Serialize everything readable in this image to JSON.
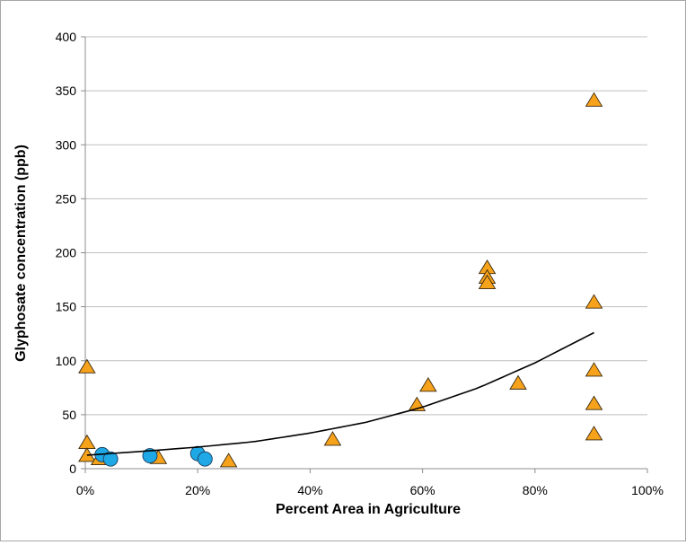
{
  "chart_data": {
    "type": "scatter",
    "title": "",
    "xlabel": "Percent Area in Agriculture",
    "ylabel": "Glyphosate concentration (ppb)",
    "xlim": [
      0,
      1
    ],
    "ylim": [
      0,
      400
    ],
    "x_ticks": [
      0,
      0.2,
      0.4,
      0.6,
      0.8,
      1.0
    ],
    "x_tick_labels": [
      "0%",
      "20%",
      "40%",
      "60%",
      "80%",
      "100%"
    ],
    "y_ticks": [
      0,
      50,
      100,
      150,
      200,
      250,
      300,
      350,
      400
    ],
    "y_tick_labels": [
      "0",
      "50",
      "100",
      "150",
      "200",
      "250",
      "300",
      "350",
      "400"
    ],
    "grid": "horizontal",
    "legend": "none",
    "series": [
      {
        "marker": "triangle",
        "color": "#f7a21b",
        "points": [
          [
            0.003,
            94
          ],
          [
            0.003,
            24
          ],
          [
            0.003,
            12
          ],
          [
            0.025,
            9
          ],
          [
            0.13,
            10
          ],
          [
            0.255,
            7
          ],
          [
            0.44,
            27
          ],
          [
            0.59,
            59
          ],
          [
            0.61,
            77
          ],
          [
            0.715,
            186
          ],
          [
            0.715,
            177
          ],
          [
            0.715,
            172
          ],
          [
            0.77,
            79
          ],
          [
            0.905,
            341
          ],
          [
            0.905,
            154
          ],
          [
            0.905,
            91
          ],
          [
            0.905,
            60
          ],
          [
            0.905,
            32
          ]
        ]
      },
      {
        "marker": "circle",
        "color": "#1ea8e6",
        "points": [
          [
            0.03,
            13
          ],
          [
            0.045,
            9
          ],
          [
            0.115,
            12
          ],
          [
            0.2,
            14
          ],
          [
            0.213,
            9
          ]
        ]
      }
    ],
    "trendline": {
      "type": "exponential",
      "color": "#000000",
      "x_range": [
        0.003,
        0.905
      ],
      "points": [
        [
          0.003,
          12.5
        ],
        [
          0.1,
          16
        ],
        [
          0.2,
          20
        ],
        [
          0.3,
          25
        ],
        [
          0.4,
          33
        ],
        [
          0.5,
          43
        ],
        [
          0.6,
          57
        ],
        [
          0.7,
          75
        ],
        [
          0.8,
          98
        ],
        [
          0.905,
          126
        ]
      ]
    }
  }
}
